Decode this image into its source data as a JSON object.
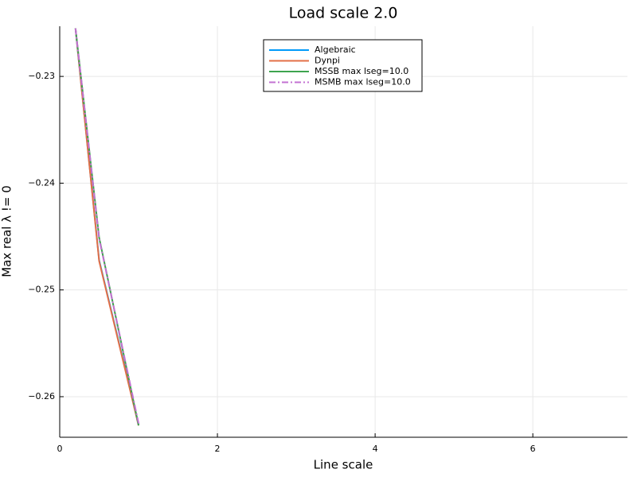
{
  "chart_data": {
    "type": "line",
    "title": "Load scale 2.0",
    "xlabel": "Line scale",
    "ylabel": "Max real λ != 0",
    "xlim": [
      0,
      7.2
    ],
    "ylim": [
      -0.2638,
      -0.2253
    ],
    "xticks": [
      0,
      2,
      4,
      6
    ],
    "xtick_labels": [
      "0",
      "2",
      "4",
      "6"
    ],
    "yticks": [
      -0.23,
      -0.24,
      -0.25,
      -0.26
    ],
    "ytick_labels": [
      "−0.23",
      "−0.24",
      "−0.25",
      "−0.26"
    ],
    "grid": true,
    "legend_position": "top-center",
    "series": [
      {
        "name": "Algebraic",
        "color": "#009AFA",
        "style": "solid",
        "x": [
          0.2,
          0.5,
          1.0
        ],
        "y": [
          -0.2255,
          -0.2472,
          -0.2626
        ]
      },
      {
        "name": "Dynpi",
        "color": "#E36F47",
        "style": "solid",
        "x": [
          0.2,
          0.5,
          1.0
        ],
        "y": [
          -0.2255,
          -0.2473,
          -0.2627
        ]
      },
      {
        "name": "MSSB max lseg=10.0",
        "color": "#3EA44E",
        "style": "solid",
        "x": [
          0.2,
          0.5,
          1.0
        ],
        "y": [
          -0.2255,
          -0.2451,
          -0.2627
        ]
      },
      {
        "name": "MSMB max lseg=10.0",
        "color": "#C371D2",
        "style": "dashdot",
        "x": [
          0.2,
          0.5,
          1.0
        ],
        "y": [
          -0.2255,
          -0.2452,
          -0.2625
        ]
      }
    ]
  }
}
